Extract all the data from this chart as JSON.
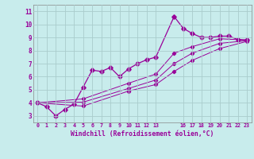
{
  "xlabel": "Windchill (Refroidissement éolien,°C)",
  "background_color": "#c8ecec",
  "line_color": "#990099",
  "grid_color": "#aacccc",
  "ylim": [
    2.5,
    11.5
  ],
  "xlim": [
    -0.5,
    23.5
  ],
  "yticks": [
    3,
    4,
    5,
    6,
    7,
    8,
    9,
    10,
    11
  ],
  "xticks": [
    0,
    1,
    2,
    3,
    4,
    5,
    6,
    7,
    8,
    9,
    10,
    11,
    12,
    13,
    16,
    17,
    18,
    19,
    20,
    21,
    22,
    23
  ],
  "xtick_labels": [
    "0",
    "1",
    "2",
    "3",
    "4",
    "5",
    "6",
    "7",
    "8",
    "9",
    "10",
    "11",
    "12",
    "13",
    "16",
    "17",
    "18",
    "19",
    "20",
    "21",
    "22",
    "23"
  ],
  "series": [
    {
      "x": [
        0,
        1,
        2,
        3,
        4,
        5,
        6,
        7,
        8,
        9,
        10,
        11,
        12,
        13,
        15,
        16,
        17,
        18,
        19,
        20,
        21,
        22,
        23
      ],
      "y": [
        4.0,
        3.7,
        3.0,
        3.5,
        3.9,
        5.2,
        6.5,
        6.4,
        6.7,
        6.0,
        6.6,
        7.0,
        7.3,
        7.5,
        10.6,
        9.7,
        9.3,
        9.0,
        9.0,
        9.1,
        9.1,
        8.85,
        8.8
      ]
    },
    {
      "x": [
        0,
        5,
        10,
        13,
        15,
        17,
        20,
        23
      ],
      "y": [
        4.0,
        4.3,
        5.5,
        6.2,
        7.8,
        8.3,
        8.9,
        8.8
      ]
    },
    {
      "x": [
        0,
        5,
        10,
        13,
        15,
        17,
        20,
        23
      ],
      "y": [
        4.0,
        4.05,
        5.1,
        5.75,
        7.0,
        7.8,
        8.55,
        8.75
      ]
    },
    {
      "x": [
        0,
        5,
        10,
        13,
        15,
        17,
        20,
        23
      ],
      "y": [
        4.0,
        3.75,
        4.9,
        5.4,
        6.4,
        7.25,
        8.15,
        8.7
      ]
    }
  ]
}
